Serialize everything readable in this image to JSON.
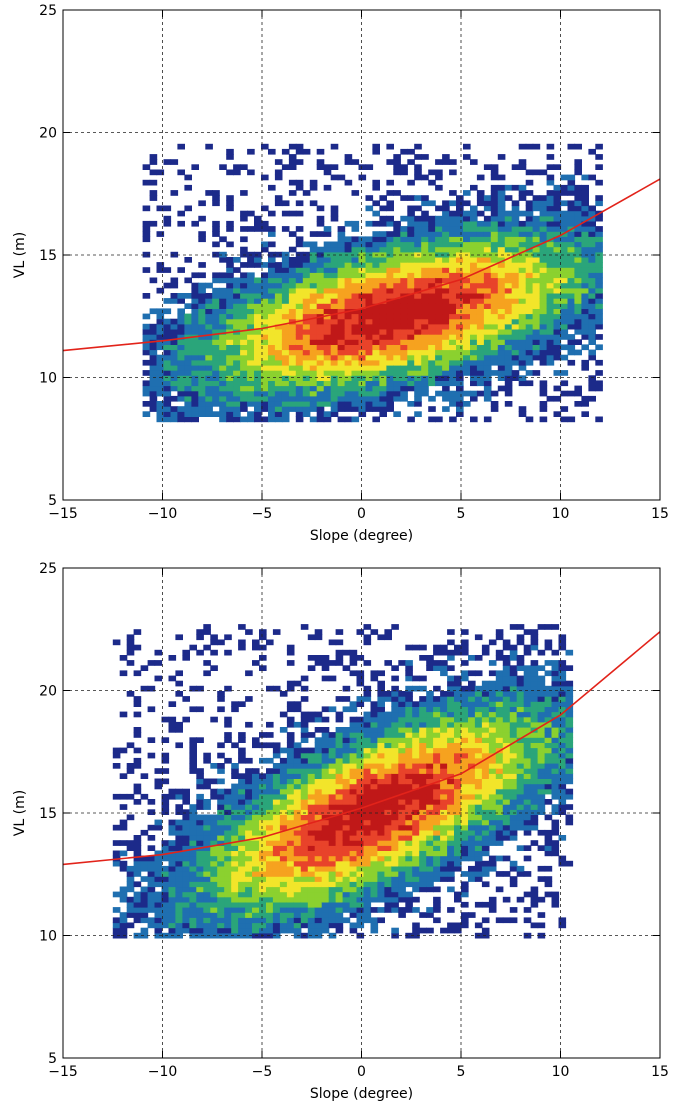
{
  "chart_data": [
    {
      "type": "heatmap",
      "xlabel": "Slope (degree)",
      "ylabel": "VL (m)",
      "xlim": [
        -15,
        15
      ],
      "ylim": [
        5,
        25
      ],
      "xticks": [
        -15,
        -10,
        -5,
        0,
        5,
        10,
        15
      ],
      "yticks": [
        5,
        10,
        15,
        20,
        25
      ],
      "grid": true,
      "colormap": [
        "#1c2a8a",
        "#1f6fb0",
        "#2aa57a",
        "#8bd12f",
        "#f2e52a",
        "#f6a21f",
        "#e8432a",
        "#c01818"
      ],
      "density_shape": {
        "center": [
          1.5,
          12.5
        ],
        "spread": [
          5.5,
          1.8
        ],
        "correlation": 0.55,
        "x_range": [
          -11,
          12
        ],
        "y_range": [
          8.2,
          19.5
        ]
      },
      "fit_curve": {
        "color": "#e2231a",
        "x": [
          -15,
          -10,
          -5,
          0,
          5,
          10,
          15
        ],
        "y": [
          11.1,
          11.5,
          12.0,
          12.8,
          14.0,
          15.8,
          18.1
        ]
      }
    },
    {
      "type": "heatmap",
      "xlabel": "Slope (degree)",
      "ylabel": "VL (m)",
      "xlim": [
        -15,
        15
      ],
      "ylim": [
        5,
        25
      ],
      "xticks": [
        -15,
        -10,
        -5,
        0,
        5,
        10,
        15
      ],
      "yticks": [
        5,
        10,
        15,
        20,
        25
      ],
      "grid": true,
      "colormap": [
        "#1c2a8a",
        "#1f6fb0",
        "#2aa57a",
        "#8bd12f",
        "#f2e52a",
        "#f6a21f",
        "#e8432a",
        "#c01818"
      ],
      "density_shape": {
        "center": [
          0.5,
          15.0
        ],
        "spread": [
          5.0,
          2.4
        ],
        "correlation": 0.7,
        "x_range": [
          -12.5,
          10.5
        ],
        "y_range": [
          9.9,
          22.7
        ]
      },
      "fit_curve": {
        "color": "#e2231a",
        "x": [
          -15,
          -10,
          -5,
          0,
          5,
          10,
          15
        ],
        "y": [
          12.9,
          13.3,
          14.0,
          15.2,
          16.6,
          19.0,
          22.4
        ]
      }
    }
  ]
}
